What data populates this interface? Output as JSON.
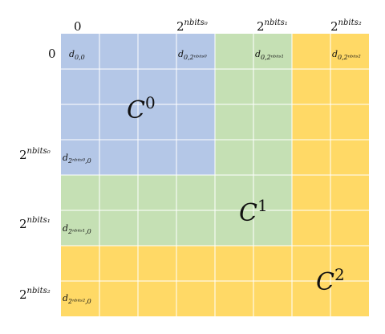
{
  "colors": {
    "block0": "#b4c7e7",
    "block1": "#c5e0b4",
    "block2": "#ffd966",
    "grid": "#ffffff"
  },
  "column_headers": [
    {
      "base": "0",
      "exp": ""
    },
    {
      "base": "2",
      "exp": "nbits₀"
    },
    {
      "base": "2",
      "exp": "nbits₁"
    },
    {
      "base": "2",
      "exp": "nbits₂"
    }
  ],
  "row_headers": [
    {
      "base": "0",
      "exp": ""
    },
    {
      "base": "2",
      "exp": "nbits₀"
    },
    {
      "base": "2",
      "exp": "nbits₁"
    },
    {
      "base": "2",
      "exp": "nbits₂"
    }
  ],
  "top_cells": [
    {
      "main": "d",
      "sub": "0,0"
    },
    {
      "main": "d",
      "sub": "0,2ⁿᵇⁱᵗˢ⁰"
    },
    {
      "main": "d",
      "sub": "0,2ⁿᵇⁱᵗˢ¹"
    },
    {
      "main": "d",
      "sub": "0,2ⁿᵇⁱᵗˢ²"
    }
  ],
  "left_cells": [
    {
      "main": "d",
      "sub": "2ⁿᵇⁱᵗˢ⁰,0"
    },
    {
      "main": "d",
      "sub": "2ⁿᵇⁱᵗˢ¹,0"
    },
    {
      "main": "d",
      "sub": "2ⁿᵇⁱᵗˢ²,0"
    }
  ],
  "block_labels": [
    {
      "base": "C",
      "exp": "0"
    },
    {
      "base": "C",
      "exp": "1"
    },
    {
      "base": "C",
      "exp": "2"
    }
  ]
}
